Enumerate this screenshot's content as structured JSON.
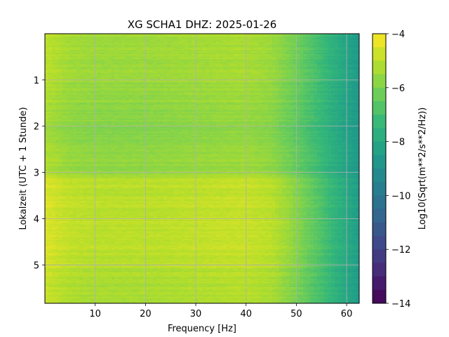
{
  "chart_data": {
    "type": "heatmap",
    "title": "XG SCHA1  DHZ: 2025-01-26",
    "xlabel": "Frequency [Hz]",
    "ylabel": "Lokalzeit (UTC + 1 Stunde)",
    "colorbar_label": "Log10(Sqrt(m**2/s**2/Hz))",
    "x_range": [
      0,
      62.5
    ],
    "y_range": [
      0,
      5.83
    ],
    "y_inverted": true,
    "x_ticks": [
      "10",
      "20",
      "30",
      "40",
      "50",
      "60"
    ],
    "y_ticks": [
      "1",
      "2",
      "3",
      "4",
      "5"
    ],
    "color_range": [
      -14,
      -4
    ],
    "colorbar_ticks": [
      "−4",
      "−6",
      "−8",
      "−10",
      "−12",
      "−14"
    ],
    "colormap": "viridis",
    "grid": true,
    "frequency_bins": 90,
    "time_rows": 200,
    "z_profile_by_frequency": [
      [
        0,
        -5.1
      ],
      [
        5,
        -5.5
      ],
      [
        10,
        -5.6
      ],
      [
        20,
        -5.6
      ],
      [
        30,
        -5.5
      ],
      [
        40,
        -5.4
      ],
      [
        45,
        -5.6
      ],
      [
        50,
        -6.3
      ],
      [
        55,
        -7.2
      ],
      [
        58,
        -7.8
      ],
      [
        62.5,
        -8.6
      ]
    ],
    "z_profile_by_time": [
      [
        0,
        0.2
      ],
      [
        1.2,
        0.0
      ],
      [
        2.2,
        -0.3
      ],
      [
        3.0,
        0.0
      ],
      [
        3.2,
        0.55
      ],
      [
        4.2,
        0.6
      ],
      [
        5.0,
        0.5
      ],
      [
        5.3,
        0.3
      ],
      [
        5.83,
        0.25
      ]
    ]
  }
}
